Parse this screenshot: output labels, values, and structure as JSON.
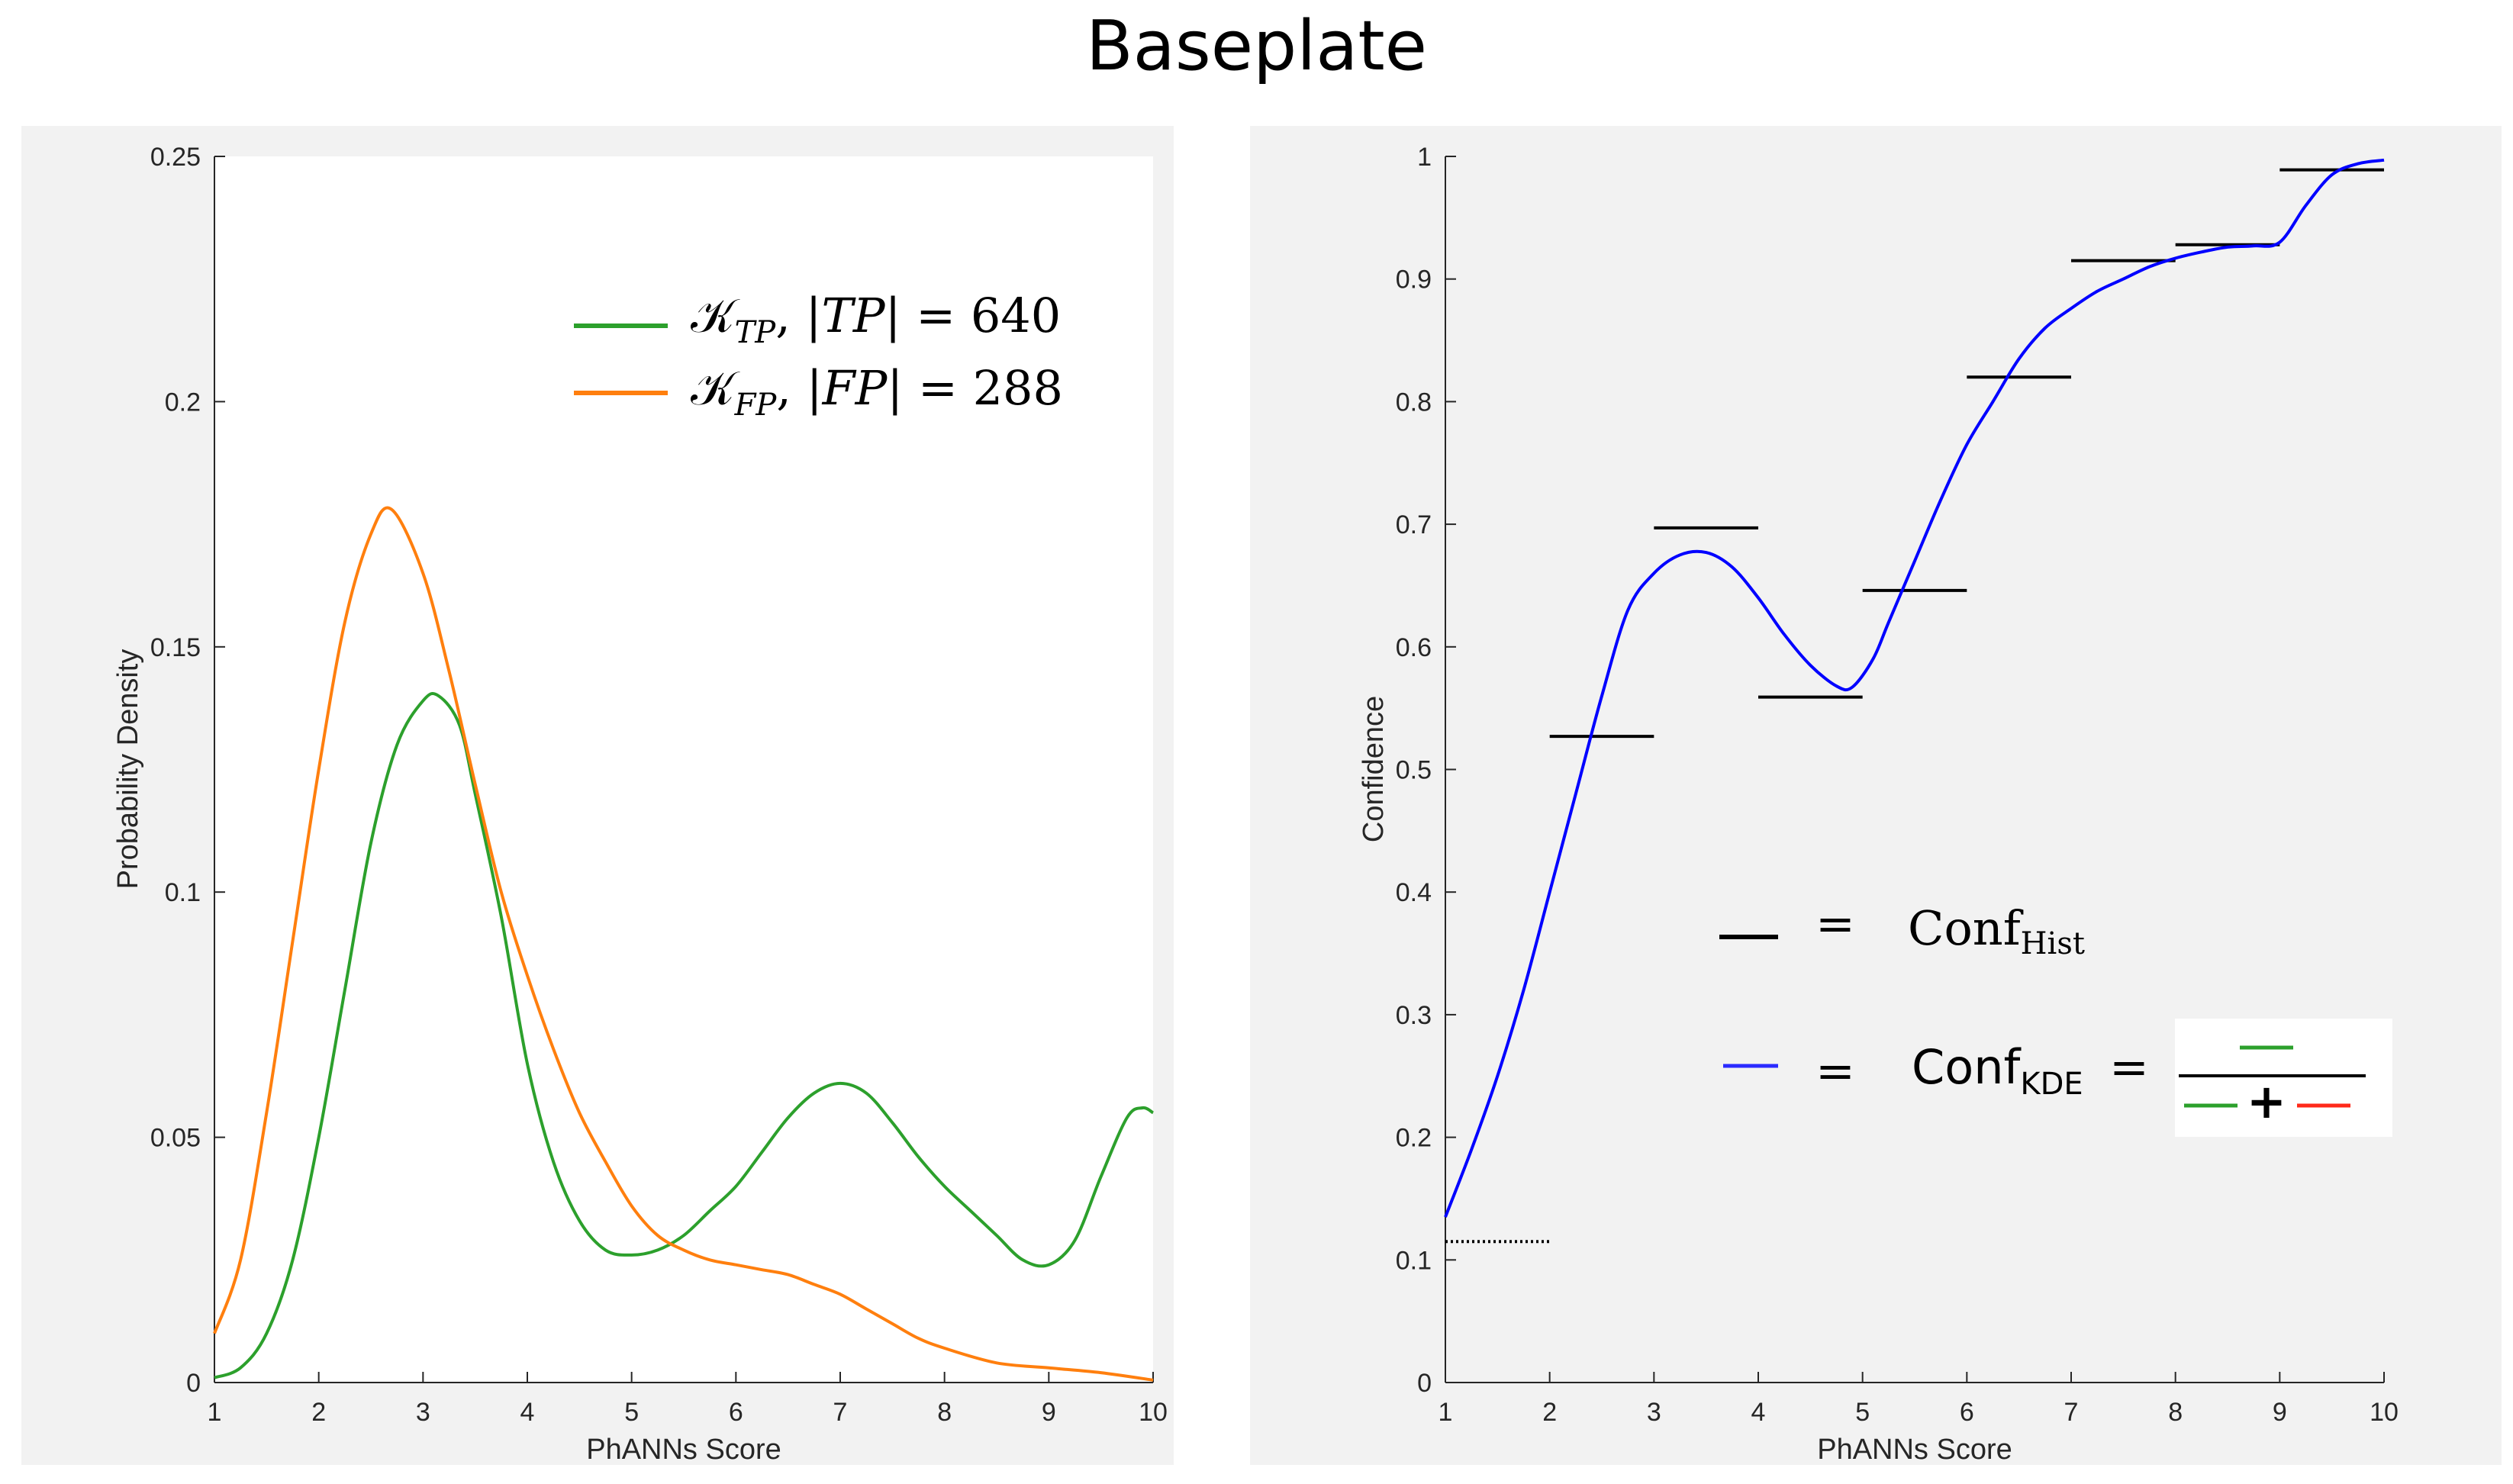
{
  "title": "Baseplate",
  "colors": {
    "tp": "#2ca02c",
    "fp": "#ff7f0e",
    "kde": "#0000ff",
    "hist": "#000000",
    "red": "#ff2a1a",
    "panel_bg": "#f2f2f2"
  },
  "chart_data": [
    {
      "type": "line",
      "xlabel": "PhANNs Score",
      "ylabel": "Probability Density",
      "xlim": [
        1,
        10
      ],
      "ylim": [
        0,
        0.25
      ],
      "xticks": [
        "1",
        "2",
        "3",
        "4",
        "5",
        "6",
        "7",
        "8",
        "9",
        "10"
      ],
      "yticks": [
        "0",
        "0.05",
        "0.1",
        "0.15",
        "0.2",
        "0.25"
      ],
      "series": [
        {
          "name": "K_TP, |TP| = 640",
          "x": [
            1,
            1.25,
            1.5,
            1.75,
            2,
            2.25,
            2.5,
            2.75,
            3,
            3.15,
            3.35,
            3.5,
            3.75,
            4,
            4.25,
            4.5,
            4.75,
            5,
            5.25,
            5.5,
            5.75,
            6,
            6.25,
            6.5,
            6.75,
            7,
            7.25,
            7.5,
            7.75,
            8,
            8.25,
            8.5,
            8.75,
            9,
            9.25,
            9.5,
            9.75,
            9.9,
            10
          ],
          "y": [
            0.001,
            0.003,
            0.01,
            0.025,
            0.05,
            0.08,
            0.11,
            0.13,
            0.139,
            0.14,
            0.134,
            0.12,
            0.095,
            0.065,
            0.045,
            0.033,
            0.027,
            0.026,
            0.027,
            0.03,
            0.035,
            0.04,
            0.047,
            0.054,
            0.059,
            0.061,
            0.059,
            0.053,
            0.046,
            0.04,
            0.035,
            0.03,
            0.025,
            0.024,
            0.029,
            0.042,
            0.054,
            0.056,
            0.055
          ]
        },
        {
          "name": "K_FP, |FP| = 288",
          "x": [
            1,
            1.25,
            1.5,
            1.75,
            2,
            2.25,
            2.5,
            2.7,
            3,
            3.25,
            3.5,
            3.75,
            4,
            4.25,
            4.5,
            4.75,
            5,
            5.25,
            5.5,
            5.75,
            6,
            6.25,
            6.5,
            6.75,
            7,
            7.25,
            7.5,
            7.75,
            8,
            8.5,
            9,
            9.5,
            10
          ],
          "y": [
            0.01,
            0.025,
            0.055,
            0.09,
            0.125,
            0.155,
            0.173,
            0.178,
            0.165,
            0.145,
            0.122,
            0.1,
            0.083,
            0.068,
            0.055,
            0.045,
            0.036,
            0.03,
            0.027,
            0.025,
            0.024,
            0.023,
            0.022,
            0.02,
            0.018,
            0.015,
            0.012,
            0.009,
            0.007,
            0.004,
            0.003,
            0.002,
            0.0005
          ]
        }
      ],
      "legend": {
        "location": "top-right",
        "tp": {
          "K": "𝒦",
          "sub": "TP",
          "pre": "|",
          "var": "TP",
          "post": "| = 640"
        },
        "fp": {
          "K": "𝒦",
          "sub": "FP",
          "pre": "|",
          "var": "FP",
          "post": "| = 288"
        }
      }
    },
    {
      "type": "line",
      "xlabel": "PhANNs Score",
      "ylabel": "Confidence",
      "xlim": [
        1,
        10
      ],
      "ylim": [
        0,
        1
      ],
      "xticks": [
        "1",
        "2",
        "3",
        "4",
        "5",
        "6",
        "7",
        "8",
        "9",
        "10"
      ],
      "yticks": [
        "0",
        "0.1",
        "0.2",
        "0.3",
        "0.4",
        "0.5",
        "0.6",
        "0.7",
        "0.8",
        "0.9",
        "1"
      ],
      "series": [
        {
          "name": "Conf_KDE",
          "x": [
            1,
            1.25,
            1.5,
            1.75,
            2,
            2.25,
            2.5,
            2.75,
            3,
            3.25,
            3.5,
            3.75,
            4,
            4.25,
            4.5,
            4.75,
            4.9,
            5.1,
            5.25,
            5.5,
            5.75,
            6,
            6.25,
            6.5,
            6.75,
            7,
            7.25,
            7.5,
            7.75,
            8,
            8.25,
            8.5,
            8.75,
            9,
            9.25,
            9.5,
            9.75,
            10
          ],
          "y": [
            0.135,
            0.19,
            0.25,
            0.32,
            0.4,
            0.48,
            0.56,
            0.63,
            0.66,
            0.675,
            0.677,
            0.665,
            0.64,
            0.61,
            0.585,
            0.568,
            0.567,
            0.59,
            0.62,
            0.67,
            0.72,
            0.765,
            0.8,
            0.835,
            0.86,
            0.876,
            0.89,
            0.9,
            0.91,
            0.917,
            0.922,
            0.926,
            0.927,
            0.93,
            0.96,
            0.985,
            0.994,
            0.997
          ]
        }
      ],
      "hist_segments": [
        {
          "x0": 1,
          "x1": 2,
          "y": 0.115,
          "style": "dotted"
        },
        {
          "x0": 2,
          "x1": 3,
          "y": 0.527
        },
        {
          "x0": 3,
          "x1": 4,
          "y": 0.697
        },
        {
          "x0": 4,
          "x1": 5,
          "y": 0.559
        },
        {
          "x0": 5,
          "x1": 6,
          "y": 0.646
        },
        {
          "x0": 6,
          "x1": 7,
          "y": 0.82
        },
        {
          "x0": 7,
          "x1": 8,
          "y": 0.915
        },
        {
          "x0": 8,
          "x1": 9,
          "y": 0.928
        },
        {
          "x0": 9,
          "x1": 10,
          "y": 0.989
        }
      ],
      "legend": {
        "location": "bottom-right",
        "eq": "=",
        "hist_label": "Conf",
        "hist_sub": "Hist",
        "kde_label": "Conf",
        "kde_sub": "KDE",
        "plus": "+"
      }
    }
  ]
}
